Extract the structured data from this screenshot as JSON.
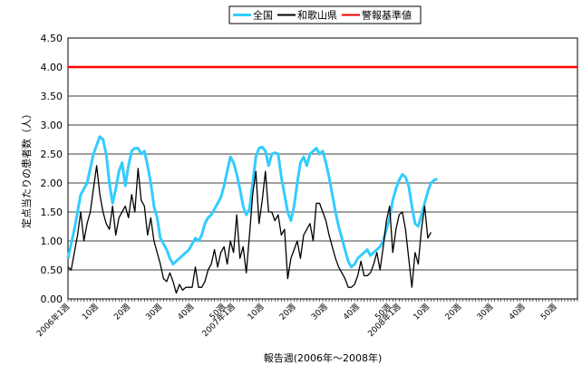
{
  "chart_data": {
    "type": "line",
    "title": "",
    "xlabel": "報告週(2006年～2008年)",
    "ylabel": "定点当たりの患者数（人）",
    "ylim": [
      0,
      4.5
    ],
    "yticks": [
      "0.00",
      "0.50",
      "1.00",
      "1.50",
      "2.00",
      "2.50",
      "3.00",
      "3.50",
      "4.00",
      "4.50"
    ],
    "x_range_weeks": [
      1,
      161
    ],
    "xticks": [
      {
        "week": 1,
        "label": "2006年1週"
      },
      {
        "week": 10,
        "label": "10週"
      },
      {
        "week": 20,
        "label": "20週"
      },
      {
        "week": 30,
        "label": "30週"
      },
      {
        "week": 40,
        "label": "40週"
      },
      {
        "week": 50,
        "label": "50週"
      },
      {
        "week": 53,
        "label": "2007年1週"
      },
      {
        "week": 62,
        "label": "10週"
      },
      {
        "week": 72,
        "label": "20週"
      },
      {
        "week": 82,
        "label": "30週"
      },
      {
        "week": 92,
        "label": "40週"
      },
      {
        "week": 102,
        "label": "50週"
      },
      {
        "week": 105,
        "label": "2008年1週"
      },
      {
        "week": 114,
        "label": "10週"
      },
      {
        "week": 124,
        "label": "20週"
      },
      {
        "week": 134,
        "label": "30週"
      },
      {
        "week": 144,
        "label": "40週"
      },
      {
        "week": 154,
        "label": "50週"
      }
    ],
    "grid": "horizontal",
    "legend_position": "top",
    "series": [
      {
        "name": "全国",
        "color": "#33ccff",
        "points": [
          [
            1,
            0.7
          ],
          [
            3,
            1.2
          ],
          [
            5,
            1.8
          ],
          [
            7,
            2.0
          ],
          [
            9,
            2.5
          ],
          [
            10,
            2.65
          ],
          [
            11,
            2.8
          ],
          [
            12,
            2.75
          ],
          [
            13,
            2.5
          ],
          [
            14,
            2.0
          ],
          [
            15,
            1.65
          ],
          [
            16,
            1.9
          ],
          [
            17,
            2.2
          ],
          [
            18,
            2.35
          ],
          [
            19,
            1.95
          ],
          [
            20,
            2.3
          ],
          [
            21,
            2.55
          ],
          [
            22,
            2.6
          ],
          [
            23,
            2.6
          ],
          [
            24,
            2.5
          ],
          [
            25,
            2.55
          ],
          [
            26,
            2.3
          ],
          [
            27,
            2.0
          ],
          [
            28,
            1.6
          ],
          [
            29,
            1.4
          ],
          [
            30,
            1.05
          ],
          [
            31,
            0.95
          ],
          [
            32,
            0.85
          ],
          [
            33,
            0.7
          ],
          [
            34,
            0.6
          ],
          [
            35,
            0.65
          ],
          [
            36,
            0.7
          ],
          [
            37,
            0.75
          ],
          [
            38,
            0.8
          ],
          [
            39,
            0.85
          ],
          [
            40,
            0.95
          ],
          [
            41,
            1.05
          ],
          [
            42,
            1.0
          ],
          [
            43,
            1.1
          ],
          [
            44,
            1.3
          ],
          [
            45,
            1.4
          ],
          [
            46,
            1.45
          ],
          [
            47,
            1.55
          ],
          [
            48,
            1.65
          ],
          [
            49,
            1.75
          ],
          [
            50,
            1.95
          ],
          [
            51,
            2.2
          ],
          [
            52,
            2.45
          ],
          [
            53,
            2.35
          ],
          [
            54,
            2.15
          ],
          [
            55,
            1.9
          ],
          [
            56,
            1.6
          ],
          [
            57,
            1.45
          ],
          [
            58,
            1.55
          ],
          [
            59,
            2.0
          ],
          [
            60,
            2.45
          ],
          [
            61,
            2.6
          ],
          [
            62,
            2.62
          ],
          [
            63,
            2.55
          ],
          [
            64,
            2.3
          ],
          [
            65,
            2.5
          ],
          [
            66,
            2.52
          ],
          [
            67,
            2.5
          ],
          [
            68,
            2.1
          ],
          [
            69,
            1.8
          ],
          [
            70,
            1.5
          ],
          [
            71,
            1.35
          ],
          [
            72,
            1.6
          ],
          [
            73,
            2.0
          ],
          [
            74,
            2.35
          ],
          [
            75,
            2.45
          ],
          [
            76,
            2.3
          ],
          [
            77,
            2.5
          ],
          [
            78,
            2.55
          ],
          [
            79,
            2.6
          ],
          [
            80,
            2.5
          ],
          [
            81,
            2.55
          ],
          [
            82,
            2.35
          ],
          [
            83,
            2.1
          ],
          [
            84,
            1.8
          ],
          [
            85,
            1.5
          ],
          [
            86,
            1.25
          ],
          [
            87,
            1.05
          ],
          [
            88,
            0.85
          ],
          [
            89,
            0.65
          ],
          [
            90,
            0.55
          ],
          [
            91,
            0.6
          ],
          [
            92,
            0.7
          ],
          [
            93,
            0.75
          ],
          [
            94,
            0.8
          ],
          [
            95,
            0.85
          ],
          [
            96,
            0.75
          ],
          [
            97,
            0.8
          ],
          [
            98,
            0.85
          ],
          [
            99,
            0.9
          ],
          [
            100,
            1.0
          ],
          [
            101,
            1.2
          ],
          [
            102,
            1.4
          ],
          [
            103,
            1.7
          ],
          [
            104,
            1.9
          ],
          [
            105,
            2.05
          ],
          [
            106,
            2.15
          ],
          [
            107,
            2.1
          ],
          [
            108,
            1.95
          ],
          [
            109,
            1.6
          ],
          [
            110,
            1.3
          ],
          [
            111,
            1.25
          ],
          [
            112,
            1.45
          ],
          [
            113,
            1.65
          ],
          [
            114,
            1.85
          ],
          [
            115,
            2.0
          ],
          [
            116,
            2.05
          ],
          [
            117,
            2.07
          ]
        ]
      },
      {
        "name": "和歌山県",
        "color": "#000000",
        "points": [
          [
            1,
            0.55
          ],
          [
            2,
            0.5
          ],
          [
            3,
            0.8
          ],
          [
            4,
            1.1
          ],
          [
            5,
            1.5
          ],
          [
            6,
            1.0
          ],
          [
            7,
            1.3
          ],
          [
            8,
            1.5
          ],
          [
            9,
            1.9
          ],
          [
            10,
            2.3
          ],
          [
            11,
            1.8
          ],
          [
            12,
            1.5
          ],
          [
            13,
            1.3
          ],
          [
            14,
            1.2
          ],
          [
            15,
            1.6
          ],
          [
            16,
            1.1
          ],
          [
            17,
            1.4
          ],
          [
            18,
            1.5
          ],
          [
            19,
            1.6
          ],
          [
            20,
            1.4
          ],
          [
            21,
            1.8
          ],
          [
            22,
            1.5
          ],
          [
            23,
            2.25
          ],
          [
            24,
            1.7
          ],
          [
            25,
            1.6
          ],
          [
            26,
            1.1
          ],
          [
            27,
            1.4
          ],
          [
            28,
            1.0
          ],
          [
            29,
            0.8
          ],
          [
            30,
            0.6
          ],
          [
            31,
            0.35
          ],
          [
            32,
            0.3
          ],
          [
            33,
            0.45
          ],
          [
            34,
            0.3
          ],
          [
            35,
            0.1
          ],
          [
            36,
            0.25
          ],
          [
            37,
            0.15
          ],
          [
            38,
            0.2
          ],
          [
            39,
            0.2
          ],
          [
            40,
            0.2
          ],
          [
            41,
            0.55
          ],
          [
            42,
            0.2
          ],
          [
            43,
            0.2
          ],
          [
            44,
            0.3
          ],
          [
            45,
            0.5
          ],
          [
            46,
            0.6
          ],
          [
            47,
            0.85
          ],
          [
            48,
            0.55
          ],
          [
            49,
            0.8
          ],
          [
            50,
            0.9
          ],
          [
            51,
            0.6
          ],
          [
            52,
            1.0
          ],
          [
            53,
            0.8
          ],
          [
            54,
            1.45
          ],
          [
            55,
            0.7
          ],
          [
            56,
            0.9
          ],
          [
            57,
            0.45
          ],
          [
            58,
            1.1
          ],
          [
            59,
            1.8
          ],
          [
            60,
            2.2
          ],
          [
            61,
            1.3
          ],
          [
            62,
            1.7
          ],
          [
            63,
            2.2
          ],
          [
            64,
            1.5
          ],
          [
            65,
            1.5
          ],
          [
            66,
            1.35
          ],
          [
            67,
            1.45
          ],
          [
            68,
            1.1
          ],
          [
            69,
            1.2
          ],
          [
            70,
            0.35
          ],
          [
            71,
            0.7
          ],
          [
            72,
            0.85
          ],
          [
            73,
            1.0
          ],
          [
            74,
            0.7
          ],
          [
            75,
            1.1
          ],
          [
            76,
            1.2
          ],
          [
            77,
            1.3
          ],
          [
            78,
            1.0
          ],
          [
            79,
            1.65
          ],
          [
            80,
            1.65
          ],
          [
            81,
            1.5
          ],
          [
            82,
            1.35
          ],
          [
            83,
            1.1
          ],
          [
            84,
            0.9
          ],
          [
            85,
            0.7
          ],
          [
            86,
            0.55
          ],
          [
            87,
            0.45
          ],
          [
            88,
            0.35
          ],
          [
            89,
            0.2
          ],
          [
            90,
            0.2
          ],
          [
            91,
            0.25
          ],
          [
            92,
            0.4
          ],
          [
            93,
            0.65
          ],
          [
            94,
            0.4
          ],
          [
            95,
            0.4
          ],
          [
            96,
            0.45
          ],
          [
            97,
            0.6
          ],
          [
            98,
            0.8
          ],
          [
            99,
            0.5
          ],
          [
            100,
            0.9
          ],
          [
            101,
            1.35
          ],
          [
            102,
            1.6
          ],
          [
            103,
            0.8
          ],
          [
            104,
            1.2
          ],
          [
            105,
            1.45
          ],
          [
            106,
            1.5
          ],
          [
            107,
            1.2
          ],
          [
            108,
            0.7
          ],
          [
            109,
            0.2
          ],
          [
            110,
            0.8
          ],
          [
            111,
            0.6
          ],
          [
            112,
            1.2
          ],
          [
            113,
            1.6
          ],
          [
            114,
            1.05
          ],
          [
            115,
            1.15
          ]
        ]
      },
      {
        "name": "警報基準値",
        "color": "#ff0000",
        "points": [
          [
            1,
            4.0
          ],
          [
            161,
            4.0
          ]
        ]
      }
    ]
  }
}
